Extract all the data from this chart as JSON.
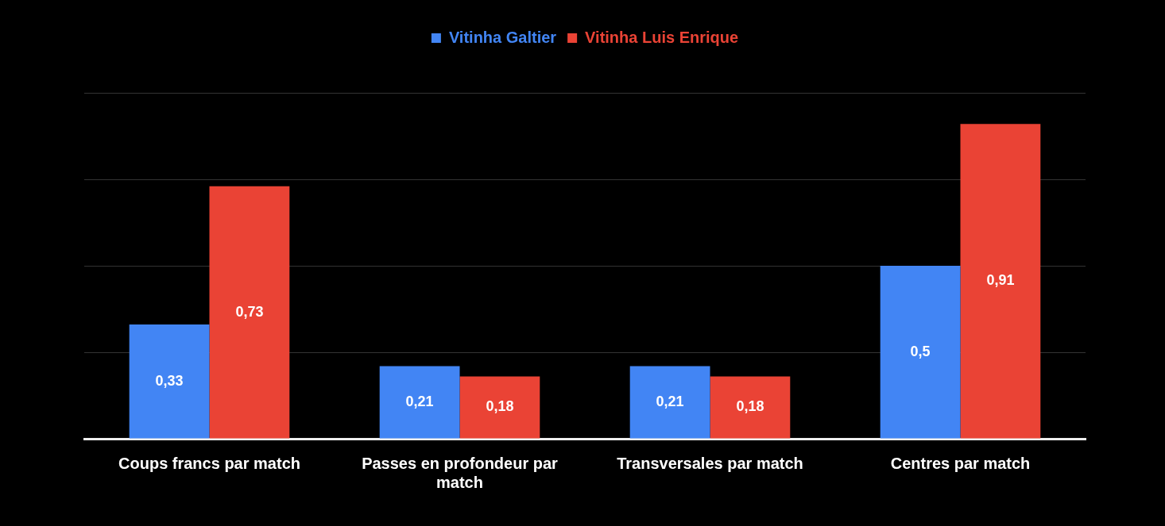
{
  "chart_data": {
    "type": "bar",
    "categories": [
      "Coups francs par match",
      "Passes en profondeur par match",
      "Transversales par match",
      "Centres par match"
    ],
    "series": [
      {
        "name": "Vitinha Galtier",
        "color": "#4285f4",
        "values": [
          0.33,
          0.21,
          0.21,
          0.5
        ],
        "value_labels": [
          "0,33",
          "0,21",
          "0,21",
          "0,5"
        ]
      },
      {
        "name": "Vitinha Luis Enrique",
        "color": "#ea4335",
        "values": [
          0.73,
          0.18,
          0.18,
          0.91
        ],
        "value_labels": [
          "0,73",
          "0,18",
          "0,18",
          "0,91"
        ]
      }
    ],
    "ylim": [
      0,
      1
    ],
    "yticks": [
      {
        "value": 0,
        "label": null
      },
      {
        "value": 0.25,
        "label": null
      },
      {
        "value": 0.5,
        "label": null
      },
      {
        "value": 0.75,
        "label": null
      },
      {
        "value": 1,
        "label": null
      }
    ],
    "tick_labels": "x",
    "grid": "y",
    "legend": "top"
  }
}
